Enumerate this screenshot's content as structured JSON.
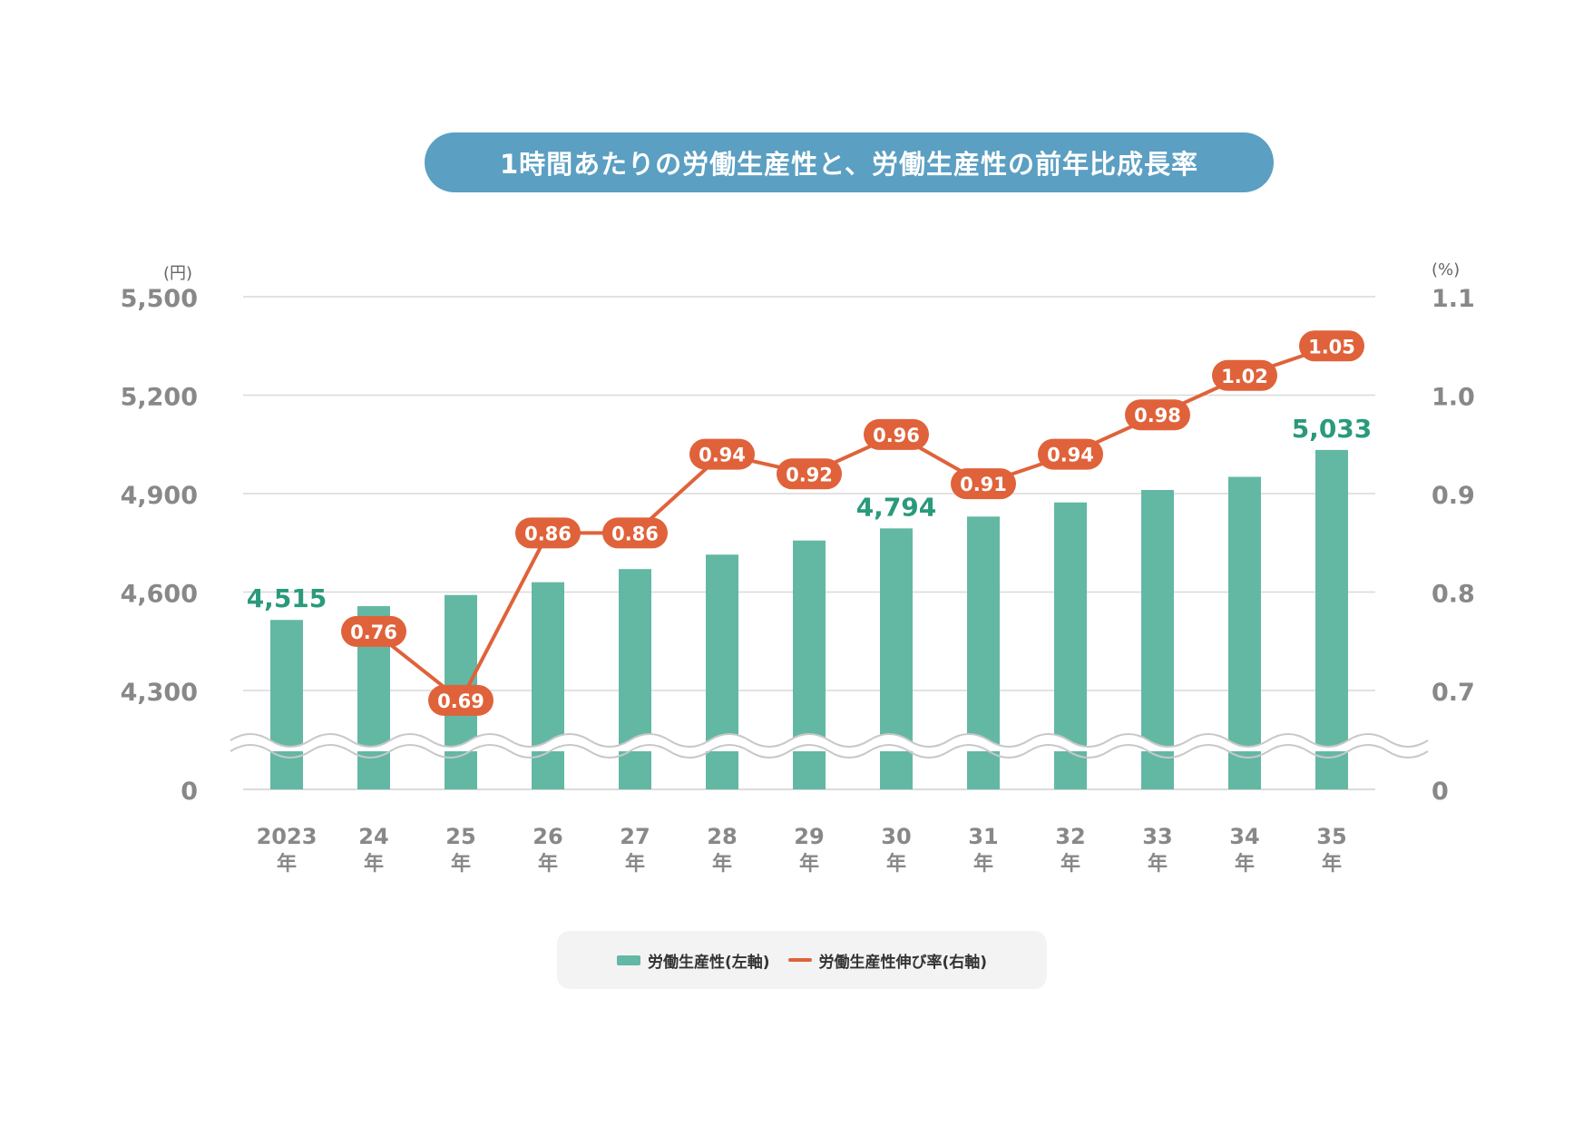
{
  "title": "1時間あたりの労働生産性と、労働生産性の前年比成長率",
  "colors": {
    "bar": "#63b8a4",
    "line": "#e0623a",
    "bar_label": "#2a9a7c",
    "axis_text": "#888888",
    "grid": "#d9d9d9"
  },
  "chart_data": {
    "type": "bar+line",
    "categories": [
      "2023\n年",
      "24\n年",
      "25\n年",
      "26\n年",
      "27\n年",
      "28\n年",
      "29\n年",
      "30\n年",
      "31\n年",
      "32\n年",
      "33\n年",
      "34\n年",
      "35\n年"
    ],
    "left_axis": {
      "unit": "(円)",
      "ticks": [
        "0",
        "4,300",
        "4,600",
        "4,900",
        "5,200",
        "5,500"
      ],
      "range": [
        4300,
        5500
      ],
      "break": true
    },
    "right_axis": {
      "unit": "(%)",
      "ticks": [
        "0",
        "0.7",
        "0.8",
        "0.9",
        "1.0",
        "1.1"
      ],
      "range": [
        0.7,
        1.1
      ],
      "break": true
    },
    "series": [
      {
        "name": "労働生産性(左軸)",
        "type": "bar",
        "axis": "left",
        "values": [
          4515,
          4557,
          4591,
          4630,
          4670,
          4714,
          4757,
          4794,
          4830,
          4873,
          4911,
          4951,
          5033
        ],
        "labels": [
          "4,515",
          "",
          "",
          "",
          "",
          "",
          "",
          "4,794",
          "",
          "",
          "",
          "",
          "5,033"
        ]
      },
      {
        "name": "労働生産性伸び率(右軸)",
        "type": "line",
        "axis": "right",
        "values": [
          null,
          0.76,
          0.69,
          0.86,
          0.86,
          0.94,
          0.92,
          0.96,
          0.91,
          0.94,
          0.98,
          1.02,
          1.05
        ],
        "labels": [
          "",
          "0.76",
          "0.69",
          "0.86",
          "0.86",
          "0.94",
          "0.92",
          "0.96",
          "0.91",
          "0.94",
          "0.98",
          "1.02",
          "1.05"
        ]
      }
    ],
    "legend": {
      "position": "bottom",
      "items": [
        "労働生産性(左軸)",
        "労働生産性伸び率(右軸)"
      ]
    }
  }
}
